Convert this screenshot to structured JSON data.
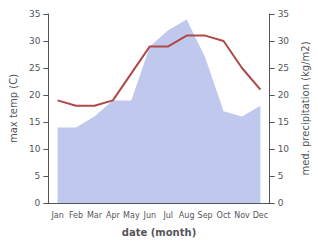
{
  "chart_data": {
    "type": "line",
    "xlabel": "date (month)",
    "ylabel": "max temp (C)",
    "y2label": "med. precipitation (kg/m2)",
    "categories": [
      "Jan",
      "Feb",
      "Mar",
      "Apr",
      "May",
      "Jun",
      "Jul",
      "Aug",
      "Sep",
      "Oct",
      "Nov",
      "Dec"
    ],
    "series": [
      {
        "type": "area",
        "color": "#c0c8ee",
        "axis": "y2",
        "values": [
          14,
          14,
          16,
          19,
          19,
          29,
          32,
          34,
          27,
          17,
          16,
          18
        ]
      },
      {
        "type": "line",
        "color": "#b04848",
        "values": [
          19,
          18,
          18,
          19,
          24,
          29,
          29,
          31,
          31,
          30,
          25,
          21
        ]
      }
    ],
    "ylim": [
      0,
      35
    ],
    "yticks": [
      0,
      5,
      10,
      15,
      20,
      25,
      30,
      35
    ],
    "y2lim": [
      0,
      35
    ],
    "y2ticks": [
      0,
      5,
      10,
      15,
      20,
      25,
      30,
      35
    ],
    "grid": false
  }
}
